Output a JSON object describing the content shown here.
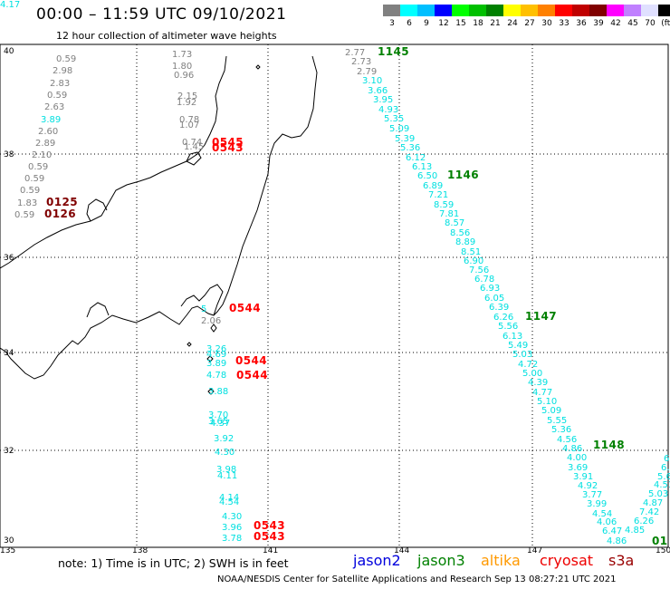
{
  "header": {
    "title": "00:00 – 11:59 UTC 09/10/2021",
    "subtitle": "12 hour collection of altimeter wave heights"
  },
  "color_scale": {
    "labels": [
      "3",
      "6",
      "9",
      "12",
      "15",
      "18",
      "21",
      "24",
      "27",
      "30",
      "33",
      "36",
      "39",
      "42",
      "45",
      "70",
      "(ft)"
    ],
    "colors": [
      "#808080",
      "#00ffff",
      "#00bfff",
      "#0000ff",
      "#00ff00",
      "#00c000",
      "#008000",
      "#ffff00",
      "#ffc000",
      "#ff8000",
      "#ff0000",
      "#c00000",
      "#800000",
      "#ff00ff",
      "#c080ff",
      "#e0e0ff",
      "#000000"
    ]
  },
  "map": {
    "lon_ticks": [
      "135",
      "138",
      "141",
      "144",
      "147",
      "150"
    ],
    "lat_ticks": [
      "40",
      "38",
      "36",
      "34",
      "32",
      "30"
    ],
    "value_labels": [
      {
        "t": "0.59",
        "c": "#808080"
      },
      {
        "t": "2.98",
        "c": "#808080"
      },
      {
        "t": "2.83",
        "c": "#808080"
      },
      {
        "t": "0.59",
        "c": "#808080"
      },
      {
        "t": "2.63",
        "c": "#808080"
      },
      {
        "t": "3.89",
        "c": "#00e0e0"
      },
      {
        "t": "2.60",
        "c": "#808080"
      },
      {
        "t": "2.89",
        "c": "#808080"
      },
      {
        "t": "2.10",
        "c": "#808080"
      },
      {
        "t": "0.59",
        "c": "#808080"
      },
      {
        "t": "0.59",
        "c": "#808080"
      },
      {
        "t": "0.59",
        "c": "#808080"
      },
      {
        "t": "1.83",
        "c": "#808080"
      },
      {
        "t": "0.59",
        "c": "#808080"
      },
      {
        "t": "1.73",
        "c": "#808080"
      },
      {
        "t": "1.80",
        "c": "#808080"
      },
      {
        "t": "0.96",
        "c": "#808080"
      },
      {
        "t": "2.15",
        "c": "#808080"
      },
      {
        "t": "1.92",
        "c": "#808080"
      },
      {
        "t": "0.78",
        "c": "#808080"
      },
      {
        "t": "1.07",
        "c": "#808080"
      },
      {
        "t": "0.74",
        "c": "#808080"
      },
      {
        "t": "1.45",
        "c": "#808080"
      },
      {
        "t": "2.77",
        "c": "#808080"
      },
      {
        "t": "2.73",
        "c": "#808080"
      },
      {
        "t": "2.79",
        "c": "#808080"
      },
      {
        "t": "3.10",
        "c": "#00e0e0"
      },
      {
        "t": "3.66",
        "c": "#00e0e0"
      },
      {
        "t": "3.95",
        "c": "#00e0e0"
      },
      {
        "t": "4.93",
        "c": "#00e0e0"
      },
      {
        "t": "5.35",
        "c": "#00e0e0"
      },
      {
        "t": "5.09",
        "c": "#00e0e0"
      },
      {
        "t": "5.39",
        "c": "#00e0e0"
      },
      {
        "t": "5.36",
        "c": "#00e0e0"
      },
      {
        "t": "6.12",
        "c": "#00e0e0"
      },
      {
        "t": "6.13",
        "c": "#00e0e0"
      },
      {
        "t": "6.50",
        "c": "#00e0e0"
      },
      {
        "t": "6.89",
        "c": "#00e0e0"
      },
      {
        "t": "7.21",
        "c": "#00e0e0"
      },
      {
        "t": "8.59",
        "c": "#00e0e0"
      },
      {
        "t": "7.81",
        "c": "#00e0e0"
      },
      {
        "t": "8.57",
        "c": "#00e0e0"
      },
      {
        "t": "8.56",
        "c": "#00e0e0"
      },
      {
        "t": "8.89",
        "c": "#00e0e0"
      },
      {
        "t": "8.51",
        "c": "#00e0e0"
      },
      {
        "t": "6.90",
        "c": "#00e0e0"
      },
      {
        "t": "7.56",
        "c": "#00e0e0"
      },
      {
        "t": "6.78",
        "c": "#00e0e0"
      },
      {
        "t": "6.93",
        "c": "#00e0e0"
      },
      {
        "t": "6.05",
        "c": "#00e0e0"
      },
      {
        "t": "6.39",
        "c": "#00e0e0"
      },
      {
        "t": "6.26",
        "c": "#00e0e0"
      },
      {
        "t": "5.56",
        "c": "#00e0e0"
      },
      {
        "t": "6.13",
        "c": "#00e0e0"
      },
      {
        "t": "5.49",
        "c": "#00e0e0"
      },
      {
        "t": "5.03",
        "c": "#00e0e0"
      },
      {
        "t": "4.72",
        "c": "#00e0e0"
      },
      {
        "t": "5.00",
        "c": "#00e0e0"
      },
      {
        "t": "4.39",
        "c": "#00e0e0"
      },
      {
        "t": "4.77",
        "c": "#00e0e0"
      },
      {
        "t": "5.10",
        "c": "#00e0e0"
      },
      {
        "t": "5.09",
        "c": "#00e0e0"
      },
      {
        "t": "5.55",
        "c": "#00e0e0"
      },
      {
        "t": "5.36",
        "c": "#00e0e0"
      },
      {
        "t": "4.56",
        "c": "#00e0e0"
      },
      {
        "t": "4.86",
        "c": "#00e0e0"
      },
      {
        "t": "4.00",
        "c": "#00e0e0"
      },
      {
        "t": "3.69",
        "c": "#00e0e0"
      },
      {
        "t": "3.91",
        "c": "#00e0e0"
      },
      {
        "t": "4.92",
        "c": "#00e0e0"
      },
      {
        "t": "3.77",
        "c": "#00e0e0"
      },
      {
        "t": "3.99",
        "c": "#00e0e0"
      },
      {
        "t": "4.54",
        "c": "#00e0e0"
      },
      {
        "t": "4.06",
        "c": "#00e0e0"
      },
      {
        "t": "6.47",
        "c": "#00e0e0"
      },
      {
        "t": "4.86",
        "c": "#00e0e0"
      },
      {
        "t": "4.85",
        "c": "#00e0e0"
      },
      {
        "t": "6.26",
        "c": "#00e0e0"
      },
      {
        "t": "7.42",
        "c": "#00e0e0"
      },
      {
        "t": "4.87",
        "c": "#00e0e0"
      },
      {
        "t": "5.03",
        "c": "#00e0e0"
      },
      {
        "t": "4.51",
        "c": "#00e0e0"
      },
      {
        "t": "5.67",
        "c": "#00e0e0"
      },
      {
        "t": "6.2",
        "c": "#00e0e0"
      },
      {
        "t": "6.",
        "c": "#00e0e0"
      },
      {
        "t": "5",
        "c": "#00e0e0"
      },
      {
        "t": "2.06",
        "c": "#808080"
      },
      {
        "t": "3.26",
        "c": "#00e0e0"
      },
      {
        "t": "4.69",
        "c": "#00e0e0"
      },
      {
        "t": "3.89",
        "c": "#00e0e0"
      },
      {
        "t": "4.78",
        "c": "#00e0e0"
      },
      {
        "t": "3.88",
        "c": "#00e0e0"
      },
      {
        "t": "3.70",
        "c": "#00e0e0"
      },
      {
        "t": "3.65",
        "c": "#00e0e0"
      },
      {
        "t": "4.37",
        "c": "#00e0e0"
      },
      {
        "t": "3.92",
        "c": "#00e0e0"
      },
      {
        "t": "4.30",
        "c": "#00e0e0"
      },
      {
        "t": "3.98",
        "c": "#00e0e0"
      },
      {
        "t": "4.11",
        "c": "#00e0e0"
      },
      {
        "t": "4.14",
        "c": "#00e0e0"
      },
      {
        "t": "4.54",
        "c": "#00e0e0"
      },
      {
        "t": "4.30",
        "c": "#00e0e0"
      },
      {
        "t": "3.96",
        "c": "#00e0e0"
      },
      {
        "t": "3.78",
        "c": "#00e0e0"
      },
      {
        "t": "4.17",
        "c": "#00e0e0"
      }
    ],
    "pass_labels": [
      {
        "t": "1145",
        "c": "#008000"
      },
      {
        "t": "1146",
        "c": "#008000"
      },
      {
        "t": "1147",
        "c": "#008000"
      },
      {
        "t": "1148",
        "c": "#008000"
      },
      {
        "t": "01",
        "c": "#008000"
      },
      {
        "t": "0545",
        "c": "#ff0000"
      },
      {
        "t": "0543",
        "c": "#ff0000"
      },
      {
        "t": "0544",
        "c": "#ff0000"
      },
      {
        "t": "0544",
        "c": "#ff0000"
      },
      {
        "t": "0544",
        "c": "#ff0000"
      },
      {
        "t": "0543",
        "c": "#ff0000"
      },
      {
        "t": "0543",
        "c": "#ff0000"
      },
      {
        "t": "0125",
        "c": "#800000"
      },
      {
        "t": "0126",
        "c": "#800000"
      }
    ]
  },
  "footer": {
    "note": "note:  1) Time is in UTC; 2) SWH is in feet",
    "satellites": [
      {
        "t": "jason2",
        "c": "#0000dd"
      },
      {
        "t": "jason3",
        "c": "#008000"
      },
      {
        "t": "altika",
        "c": "#ff9900"
      },
      {
        "t": "cryosat",
        "c": "#ee0000"
      },
      {
        "t": "s3a",
        "c": "#990000"
      }
    ],
    "credit": "NOAA/NESDIS Center for Satellite Applications and Research    Sep 13 08:27:21 UTC 2021"
  }
}
